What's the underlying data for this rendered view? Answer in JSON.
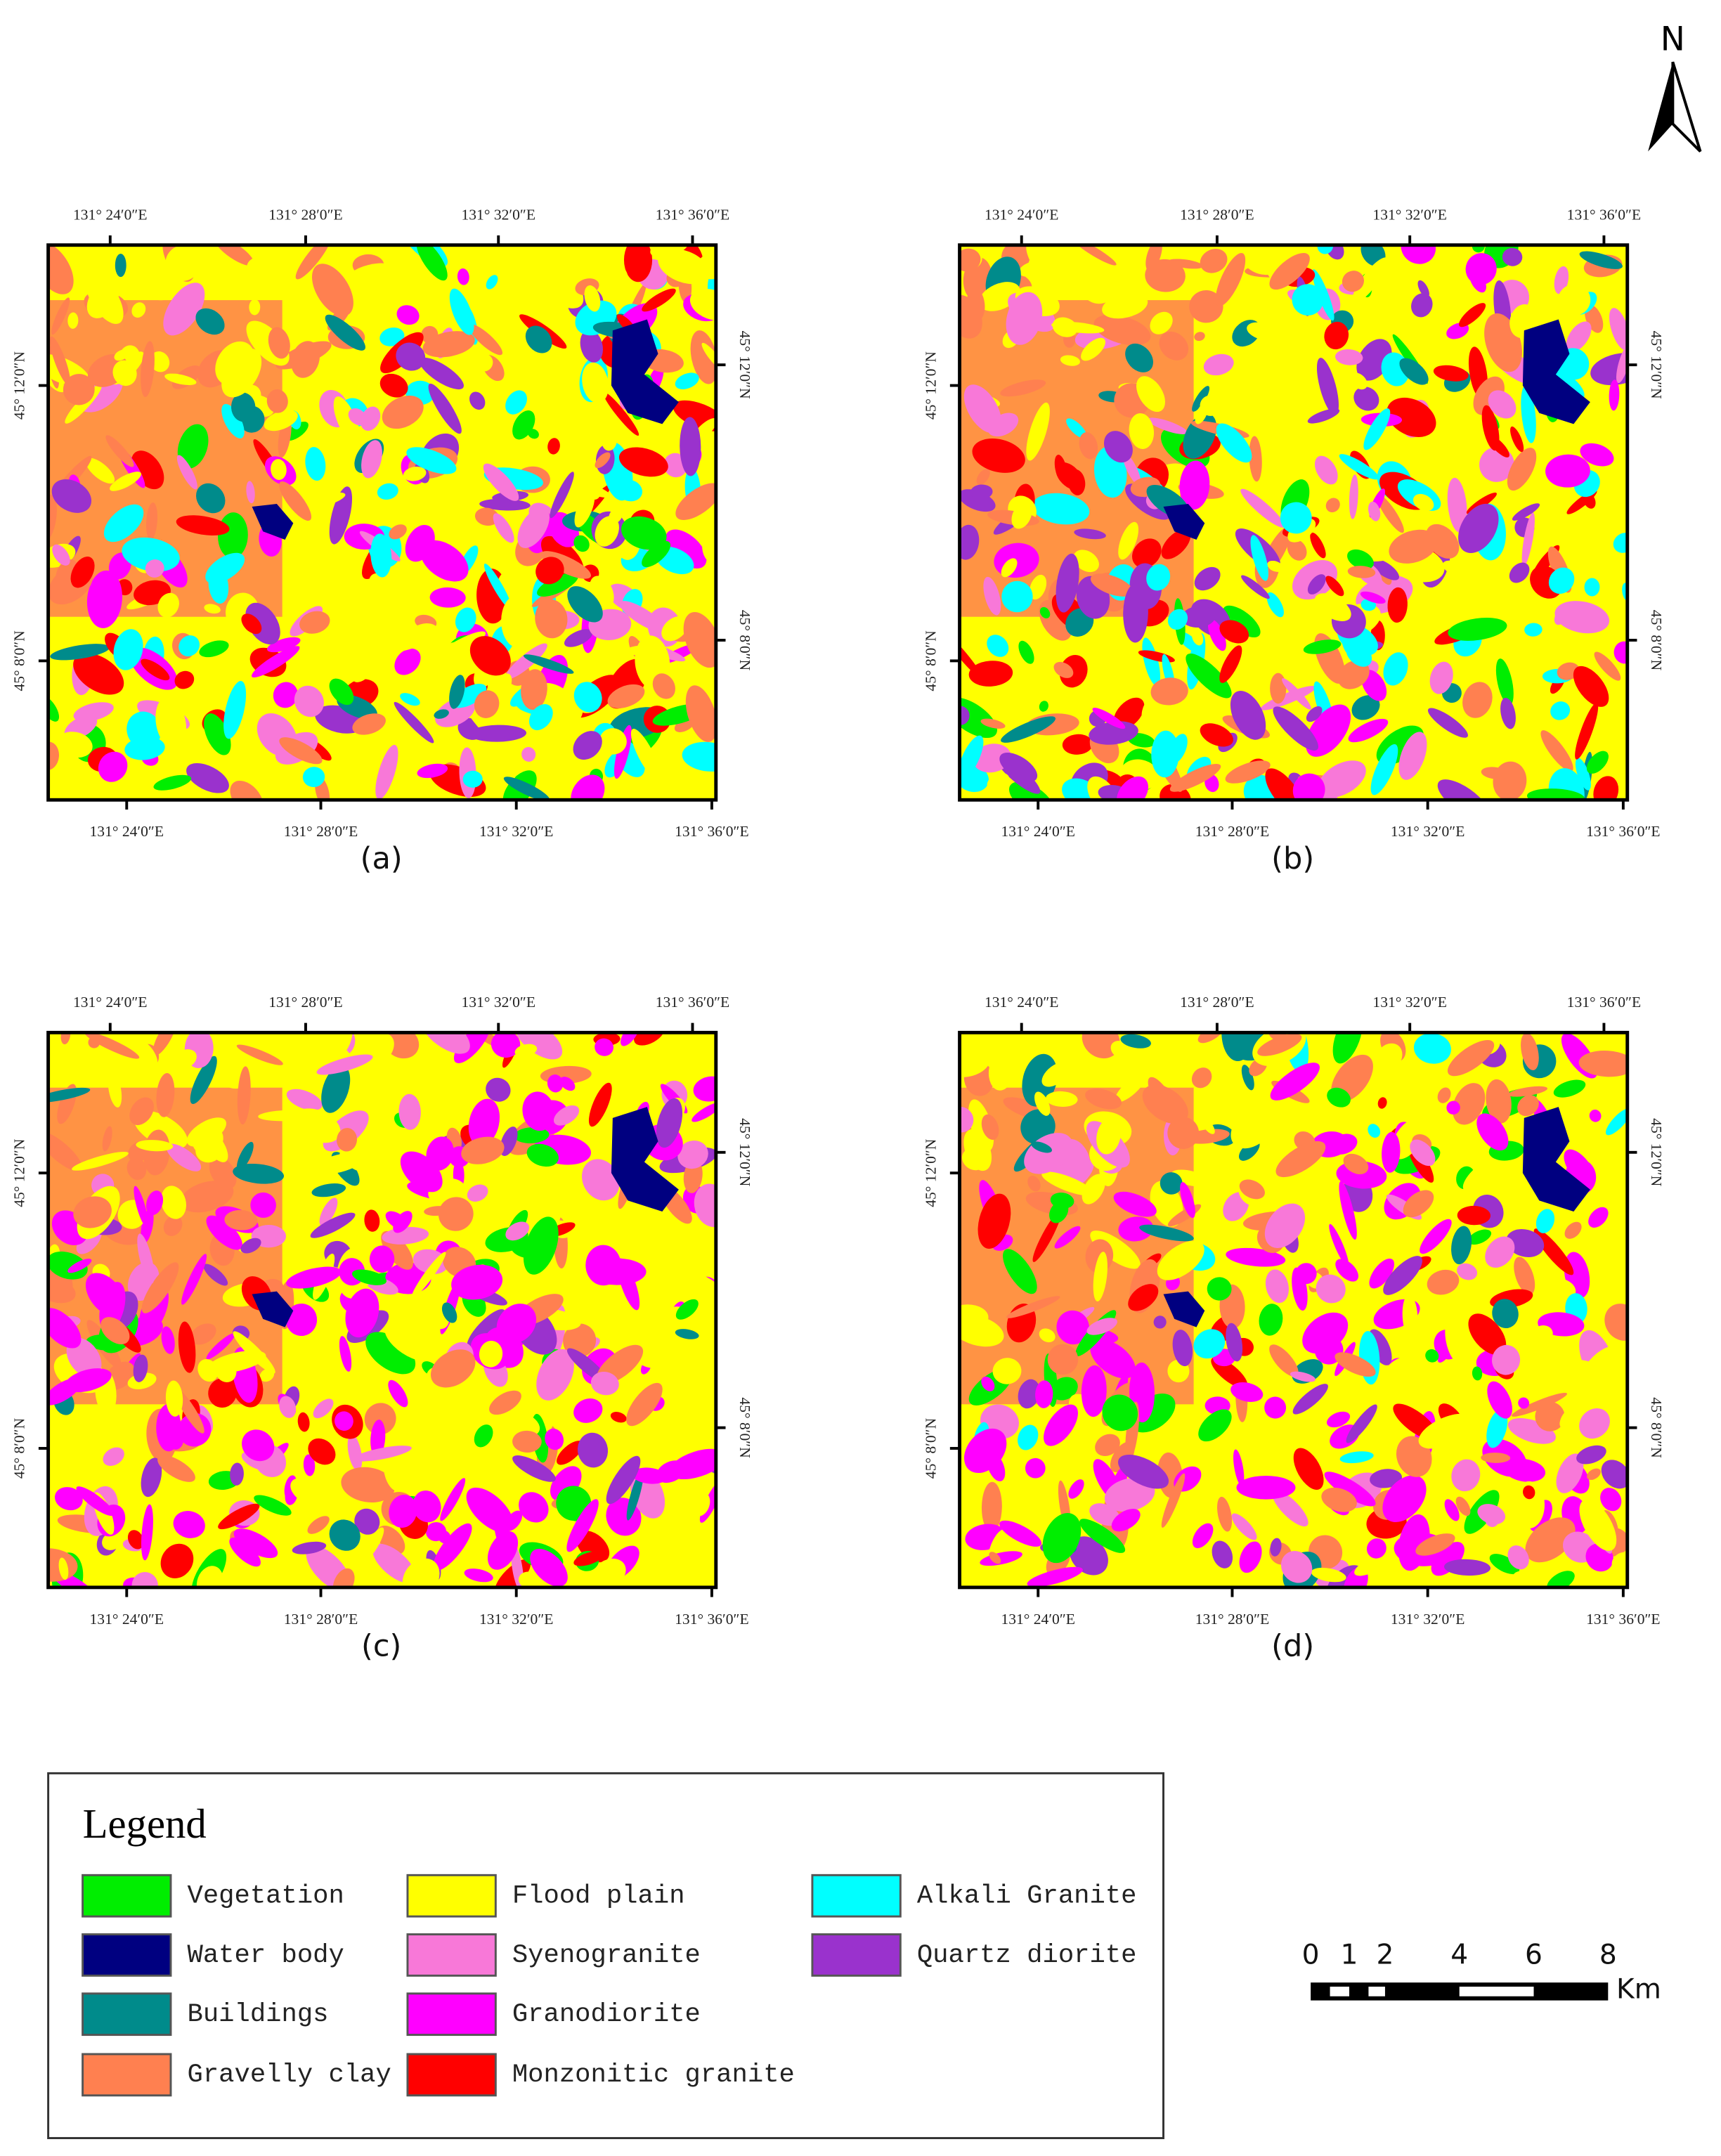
{
  "north": "N",
  "coordinates": {
    "top": [
      "131° 24′0″E",
      "131° 28′0″E",
      "131° 32′0″E",
      "131° 36′0″E"
    ],
    "bottom": [
      "131° 24′0″E",
      "131° 28′0″E",
      "131° 32′0″E",
      "131° 36′0″E"
    ],
    "left": [
      "45° 12′0″N",
      "45° 8′0″N"
    ],
    "right": [
      "45° 12′0″N",
      "45° 8′0″N"
    ]
  },
  "panels": [
    {
      "label": "(a)"
    },
    {
      "label": "(b)"
    },
    {
      "label": "(c)"
    },
    {
      "label": "(d)"
    }
  ],
  "legend": {
    "title": "Legend",
    "items": [
      {
        "label": "Vegetation",
        "color": "#00ee00"
      },
      {
        "label": "Water body",
        "color": "#000080"
      },
      {
        "label": "Buildings",
        "color": "#008b8b"
      },
      {
        "label": "Gravelly clay",
        "color": "#ff8050"
      },
      {
        "label": "Flood plain",
        "color": "#ffff00"
      },
      {
        "label": "Syenogranite",
        "color": "#f878d8"
      },
      {
        "label": "Granodiorite",
        "color": "#ff00ff"
      },
      {
        "label": "Monzonitic granite",
        "color": "#ff0000"
      },
      {
        "label": "Alkali Granite",
        "color": "#00ffff"
      },
      {
        "label": "Quartz diorite",
        "color": "#9a32cd"
      }
    ]
  },
  "scale_bar": {
    "labels": [
      "0",
      "1",
      "2",
      "4",
      "6",
      "8"
    ],
    "unit": "Km"
  }
}
